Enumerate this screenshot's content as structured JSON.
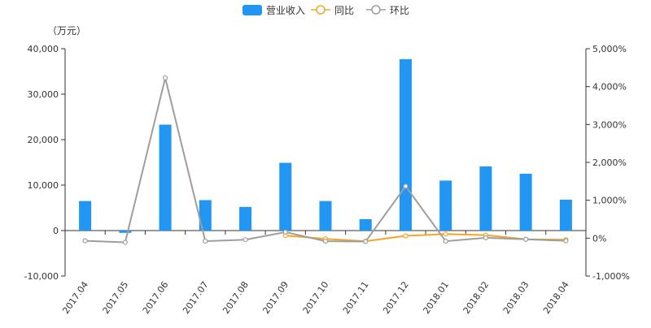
{
  "legend": {
    "items": [
      {
        "label": "营业收入",
        "color": "#2196f3",
        "kind": "bar"
      },
      {
        "label": "同比",
        "color": "#f5a623",
        "kind": "line"
      },
      {
        "label": "环比",
        "color": "#9e9e9e",
        "kind": "line"
      }
    ]
  },
  "chart_data": {
    "type": "bar",
    "unit_label": "（万元）",
    "categories": [
      "2017.04",
      "2017.05",
      "2017.06",
      "2017.07",
      "2017.08",
      "2017.09",
      "2017.10",
      "2017.11",
      "2017.12",
      "2018.01",
      "2018.02",
      "2018.03",
      "2018.04"
    ],
    "ylim_left": [
      -10000,
      40000
    ],
    "ylim_right": [
      -1000,
      5000
    ],
    "y_ticks_left": [
      "-10,000",
      "0",
      "10,000",
      "20,000",
      "30,000",
      "40,000"
    ],
    "y_ticks_right": [
      "-1,000%",
      "0%",
      "1,000%",
      "2,000%",
      "3,000%",
      "4,000%",
      "5,000%"
    ],
    "series": [
      {
        "name": "营业收入",
        "type": "bar",
        "axis": "left",
        "color": "#2196f3",
        "values": [
          6500,
          -500,
          23300,
          6700,
          5200,
          14900,
          6500,
          2500,
          37700,
          11000,
          14100,
          12500,
          6800
        ]
      },
      {
        "name": "同比",
        "type": "line",
        "axis": "right",
        "color": "#f5a623",
        "values": [
          null,
          null,
          null,
          null,
          null,
          70,
          -20,
          -80,
          60,
          110,
          80,
          -30,
          -40
        ]
      },
      {
        "name": "环比",
        "type": "line",
        "axis": "right",
        "color": "#9e9e9e",
        "values": [
          -70,
          -110,
          4230,
          -80,
          -40,
          160,
          -80,
          -90,
          1370,
          -80,
          10,
          -30,
          -70
        ]
      }
    ]
  }
}
